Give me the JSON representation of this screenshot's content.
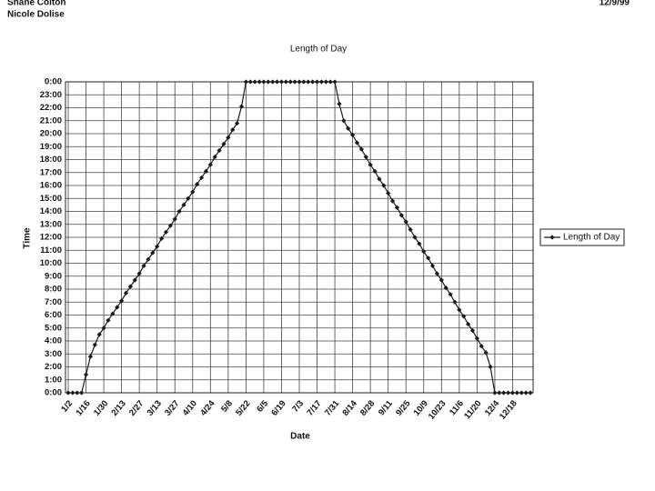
{
  "header": {
    "names": [
      "Shane Colton",
      "Nicole Dolise"
    ],
    "date": "12/9/99"
  },
  "chart_data": {
    "type": "line",
    "title": "Length of Day",
    "x_label": "Date",
    "y_label": "Time",
    "categories": [
      "1/2",
      null,
      null,
      null,
      "1/16",
      null,
      null,
      null,
      "1/30",
      null,
      null,
      null,
      "2/13",
      null,
      null,
      null,
      "2/27",
      null,
      null,
      null,
      "3/13",
      null,
      null,
      null,
      "3/27",
      null,
      null,
      null,
      "4/10",
      null,
      null,
      null,
      "4/24",
      null,
      null,
      null,
      "5/8",
      null,
      null,
      null,
      "5/22",
      null,
      null,
      null,
      "6/5",
      null,
      null,
      null,
      "6/19",
      null,
      null,
      null,
      "7/3",
      null,
      null,
      null,
      "7/17",
      null,
      null,
      null,
      "7/31",
      null,
      null,
      null,
      "8/14",
      null,
      null,
      null,
      "8/28",
      null,
      null,
      null,
      "9/11",
      null,
      null,
      null,
      "9/25",
      null,
      null,
      null,
      "10/9",
      null,
      null,
      null,
      "10/23",
      null,
      null,
      null,
      "11/6",
      null,
      null,
      null,
      "11/20",
      null,
      null,
      null,
      "12/4",
      null,
      null,
      null,
      "12/18",
      null,
      null,
      null,
      null
    ],
    "series": [
      {
        "name": "Length of Day",
        "color": "#1a1a1a",
        "values": [
          0,
          0,
          0,
          0,
          1.4,
          2.8,
          3.7,
          4.5,
          5.0,
          5.6,
          6.1,
          6.6,
          7.1,
          7.7,
          8.2,
          8.7,
          9.2,
          9.8,
          10.3,
          10.8,
          11.3,
          11.9,
          12.4,
          12.9,
          13.4,
          14.0,
          14.5,
          15.0,
          15.5,
          16.1,
          16.6,
          17.1,
          17.6,
          18.2,
          18.7,
          19.2,
          19.7,
          20.3,
          20.8,
          22.1,
          24,
          24,
          24,
          24,
          24,
          24,
          24,
          24,
          24,
          24,
          24,
          24,
          24,
          24,
          24,
          24,
          24,
          24,
          24,
          24,
          24,
          22.3,
          21.0,
          20.4,
          19.9,
          19.3,
          18.8,
          18.2,
          17.6,
          17.1,
          16.5,
          16.0,
          15.4,
          14.8,
          14.3,
          13.7,
          13.2,
          12.6,
          12.0,
          11.5,
          10.9,
          10.4,
          9.8,
          9.2,
          8.7,
          8.1,
          7.6,
          7.0,
          6.4,
          5.9,
          5.3,
          4.8,
          4.2,
          3.6,
          3.1,
          2.0,
          0,
          0,
          0,
          0,
          0,
          0,
          0,
          0,
          0
        ]
      }
    ],
    "ylim": [
      0,
      24
    ],
    "yticks": [
      {
        "value": 0,
        "label": "0:00"
      },
      {
        "value": 1,
        "label": "1:00"
      },
      {
        "value": 2,
        "label": "2:00"
      },
      {
        "value": 3,
        "label": "3:00"
      },
      {
        "value": 4,
        "label": "4:00"
      },
      {
        "value": 5,
        "label": "5:00"
      },
      {
        "value": 6,
        "label": "6:00"
      },
      {
        "value": 7,
        "label": "7:00"
      },
      {
        "value": 8,
        "label": "8:00"
      },
      {
        "value": 9,
        "label": "9:00"
      },
      {
        "value": 10,
        "label": "10:00"
      },
      {
        "value": 11,
        "label": "11:00"
      },
      {
        "value": 12,
        "label": "12:00"
      },
      {
        "value": 13,
        "label": "13:00"
      },
      {
        "value": 14,
        "label": "14:00"
      },
      {
        "value": 15,
        "label": "15:00"
      },
      {
        "value": 16,
        "label": "16:00"
      },
      {
        "value": 17,
        "label": "17:00"
      },
      {
        "value": 18,
        "label": "18:00"
      },
      {
        "value": 19,
        "label": "19:00"
      },
      {
        "value": 20,
        "label": "20:00"
      },
      {
        "value": 21,
        "label": "21:00"
      },
      {
        "value": 22,
        "label": "22:00"
      },
      {
        "value": 23,
        "label": "23:00"
      },
      {
        "value": 24,
        "label": "0:00"
      }
    ],
    "grid": true,
    "legend": "right"
  }
}
